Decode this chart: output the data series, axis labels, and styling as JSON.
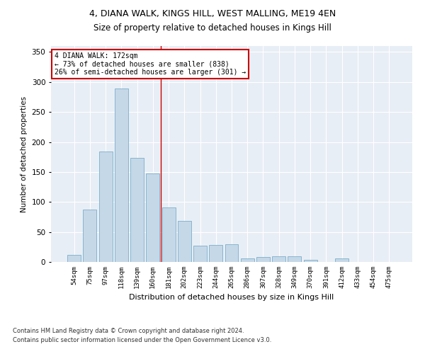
{
  "title1": "4, DIANA WALK, KINGS HILL, WEST MALLING, ME19 4EN",
  "title2": "Size of property relative to detached houses in Kings Hill",
  "xlabel": "Distribution of detached houses by size in Kings Hill",
  "ylabel": "Number of detached properties",
  "categories": [
    "54sqm",
    "75sqm",
    "97sqm",
    "118sqm",
    "139sqm",
    "160sqm",
    "181sqm",
    "202sqm",
    "223sqm",
    "244sqm",
    "265sqm",
    "286sqm",
    "307sqm",
    "328sqm",
    "349sqm",
    "370sqm",
    "391sqm",
    "412sqm",
    "433sqm",
    "454sqm",
    "475sqm"
  ],
  "values": [
    12,
    87,
    184,
    289,
    174,
    148,
    91,
    68,
    27,
    28,
    30,
    6,
    8,
    9,
    9,
    3,
    0,
    6,
    0,
    0,
    0
  ],
  "bar_color": "#c5d8e8",
  "bar_edge_color": "#7baecb",
  "bg_color": "#e8eef5",
  "annotation_text": "4 DIANA WALK: 172sqm\n← 73% of detached houses are smaller (838)\n26% of semi-detached houses are larger (301) →",
  "annotation_box_color": "#ffffff",
  "annotation_box_edge": "#cc0000",
  "vline_x": 5.5,
  "vline_color": "#cc0000",
  "footnote1": "Contains HM Land Registry data © Crown copyright and database right 2024.",
  "footnote2": "Contains public sector information licensed under the Open Government Licence v3.0.",
  "ylim": [
    0,
    360
  ],
  "yticks": [
    0,
    50,
    100,
    150,
    200,
    250,
    300,
    350
  ],
  "title1_fontsize": 9,
  "title2_fontsize": 8.5
}
